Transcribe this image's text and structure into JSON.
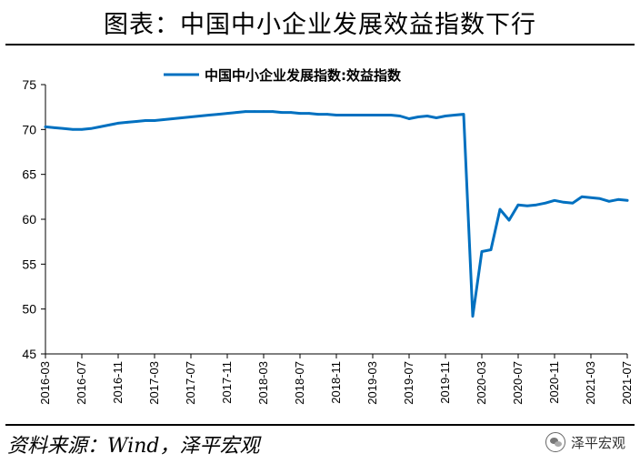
{
  "figure": {
    "title": "图表：中国中小企业发展效益指数下行",
    "source": "资料来源：Wind，泽平宏观",
    "watermark": "泽平宏观"
  },
  "colors": {
    "series_line": "#0070C0",
    "axis": "#000000"
  },
  "chart_data": {
    "type": "line",
    "title": "",
    "xlabel": "",
    "ylabel": "",
    "ylim": [
      45,
      75
    ],
    "yticks": [
      45,
      50,
      55,
      60,
      65,
      70,
      75
    ],
    "xtick_labels": [
      "2016-03",
      "2016-07",
      "2016-11",
      "2017-03",
      "2017-07",
      "2017-11",
      "2018-03",
      "2018-07",
      "2018-11",
      "2019-03",
      "2019-07",
      "2019-11",
      "2020-03",
      "2020-07",
      "2020-11",
      "2021-03",
      "2021-07"
    ],
    "grid": false,
    "legend_position": "top",
    "x": [
      "2016-03",
      "2016-04",
      "2016-05",
      "2016-06",
      "2016-07",
      "2016-08",
      "2016-09",
      "2016-10",
      "2016-11",
      "2016-12",
      "2017-01",
      "2017-02",
      "2017-03",
      "2017-04",
      "2017-05",
      "2017-06",
      "2017-07",
      "2017-08",
      "2017-09",
      "2017-10",
      "2017-11",
      "2017-12",
      "2018-01",
      "2018-02",
      "2018-03",
      "2018-04",
      "2018-05",
      "2018-06",
      "2018-07",
      "2018-08",
      "2018-09",
      "2018-10",
      "2018-11",
      "2018-12",
      "2019-01",
      "2019-02",
      "2019-03",
      "2019-04",
      "2019-05",
      "2019-06",
      "2019-07",
      "2019-08",
      "2019-09",
      "2019-10",
      "2019-11",
      "2019-12",
      "2020-01",
      "2020-02",
      "2020-03",
      "2020-04",
      "2020-05",
      "2020-06",
      "2020-07",
      "2020-08",
      "2020-09",
      "2020-10",
      "2020-11",
      "2020-12",
      "2021-01",
      "2021-02",
      "2021-03",
      "2021-04",
      "2021-05",
      "2021-06",
      "2021-07"
    ],
    "series": [
      {
        "name": "中国中小企业发展指数:效益指数",
        "values": [
          70.3,
          70.2,
          70.1,
          70.0,
          70.0,
          70.1,
          70.3,
          70.5,
          70.7,
          70.8,
          70.9,
          71.0,
          71.0,
          71.1,
          71.2,
          71.3,
          71.4,
          71.5,
          71.6,
          71.7,
          71.8,
          71.9,
          72.0,
          72.0,
          72.0,
          72.0,
          71.9,
          71.9,
          71.8,
          71.8,
          71.7,
          71.7,
          71.6,
          71.6,
          71.6,
          71.6,
          71.6,
          71.6,
          71.6,
          71.5,
          71.2,
          71.4,
          71.5,
          71.3,
          71.5,
          71.6,
          71.7,
          49.2,
          56.4,
          56.6,
          61.1,
          59.9,
          61.6,
          61.5,
          61.6,
          61.8,
          62.1,
          61.9,
          61.8,
          62.5,
          62.4,
          62.3,
          62.0,
          62.2,
          62.1
        ]
      }
    ]
  }
}
